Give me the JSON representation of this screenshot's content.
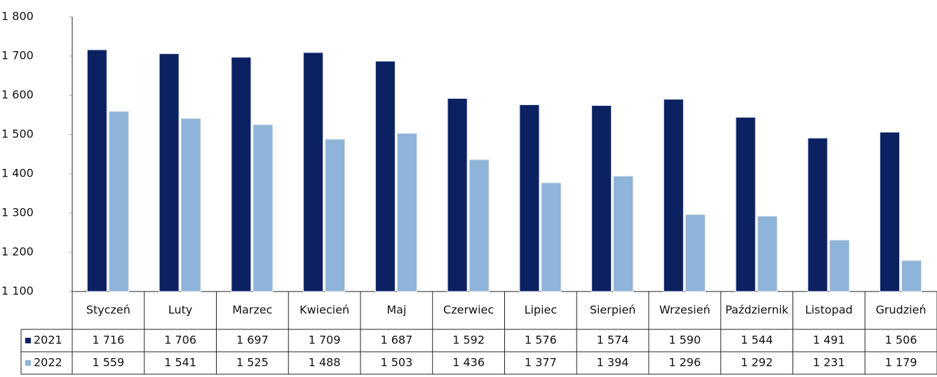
{
  "chart_data": {
    "type": "bar",
    "categories": [
      "Styczeń",
      "Luty",
      "Marzec",
      "Kwiecień",
      "Maj",
      "Czerwiec",
      "Lipiec",
      "Sierpień",
      "Wrzesień",
      "Październik",
      "Listopad",
      "Grudzień"
    ],
    "series": [
      {
        "name": "2021",
        "color": "#0b2161",
        "values": [
          1716,
          1706,
          1697,
          1709,
          1687,
          1592,
          1576,
          1574,
          1590,
          1544,
          1491,
          1506
        ],
        "value_labels": [
          "1 716",
          "1 706",
          "1 697",
          "1 709",
          "1 687",
          "1 592",
          "1 576",
          "1 574",
          "1 590",
          "1 544",
          "1 491",
          "1 506"
        ]
      },
      {
        "name": "2022",
        "color": "#8eb4d9",
        "values": [
          1559,
          1541,
          1525,
          1488,
          1503,
          1436,
          1377,
          1394,
          1296,
          1292,
          1231,
          1179
        ],
        "value_labels": [
          "1 559",
          "1 541",
          "1 525",
          "1 488",
          "1 503",
          "1 436",
          "1 377",
          "1 394",
          "1 296",
          "1 292",
          "1 231",
          "1 179"
        ]
      }
    ],
    "ylim": [
      1100,
      1800
    ],
    "yticks": [
      {
        "value": 1100,
        "label": "1 100"
      },
      {
        "value": 1200,
        "label": "1 200"
      },
      {
        "value": 1300,
        "label": "1 300"
      },
      {
        "value": 1400,
        "label": "1 400"
      },
      {
        "value": 1500,
        "label": "1 500"
      },
      {
        "value": 1600,
        "label": "1 600"
      },
      {
        "value": 1700,
        "label": "1 700"
      },
      {
        "value": 1800,
        "label": "1 800"
      }
    ],
    "legend": "table"
  }
}
